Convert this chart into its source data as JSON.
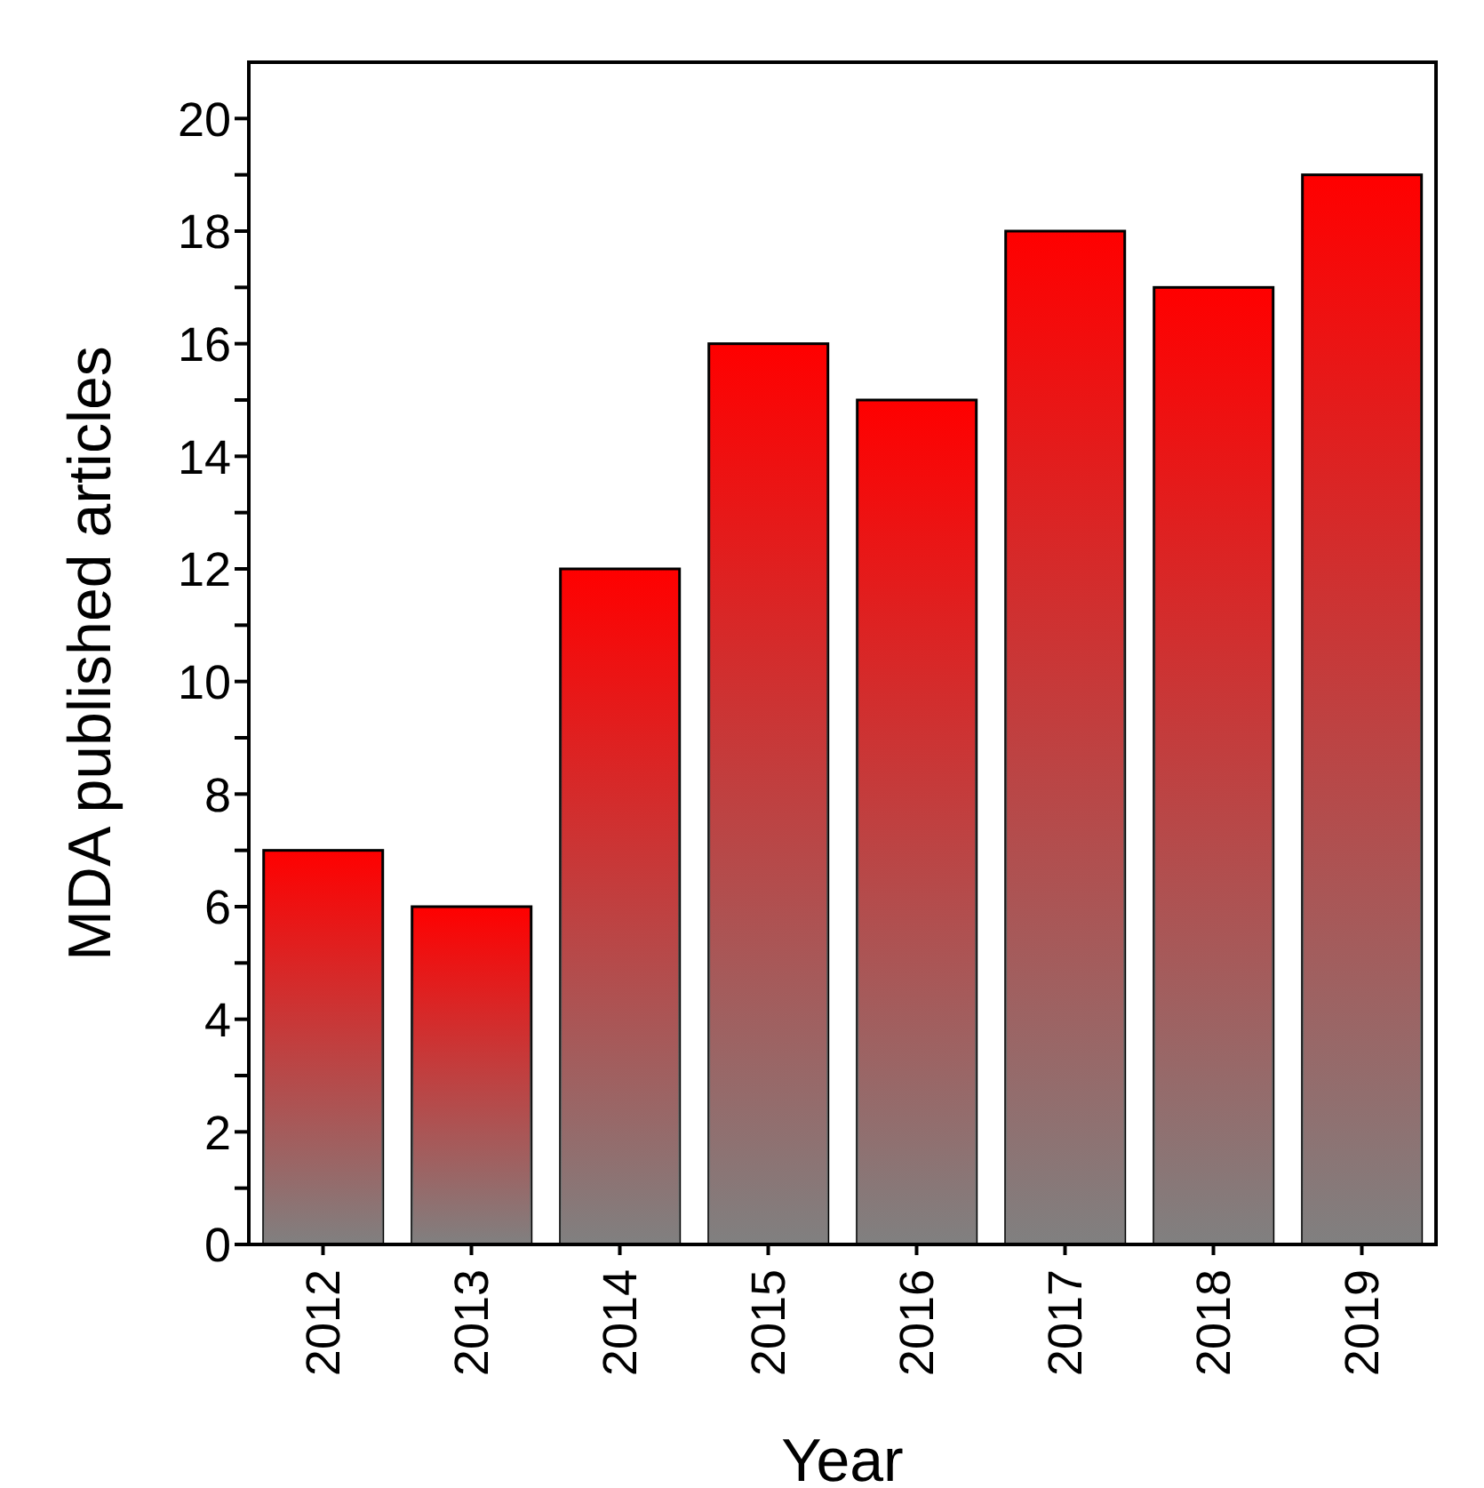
{
  "chart_data": {
    "type": "bar",
    "xlabel": "Year",
    "ylabel": "MDA published articles",
    "categories": [
      "2012",
      "2013",
      "2014",
      "2015",
      "2016",
      "2017",
      "2018",
      "2019"
    ],
    "values": [
      7,
      6,
      12,
      16,
      15,
      18,
      17,
      19
    ],
    "color": "#ff0000",
    "ylim": [
      0,
      21
    ],
    "yticks": [
      0,
      {
        "value": 1,
        "label": null
      },
      2,
      {
        "value": 3,
        "label": null
      },
      4,
      {
        "value": 5,
        "label": null
      },
      6,
      {
        "value": 7,
        "label": null
      },
      8,
      {
        "value": 9,
        "label": null
      },
      10,
      {
        "value": 11,
        "label": null
      },
      12,
      {
        "value": 13,
        "label": null
      },
      14,
      {
        "value": 15,
        "label": null
      },
      16,
      {
        "value": 17,
        "label": null
      },
      18,
      {
        "value": 19,
        "label": null
      },
      20
    ],
    "grid": false,
    "legend": false
  }
}
